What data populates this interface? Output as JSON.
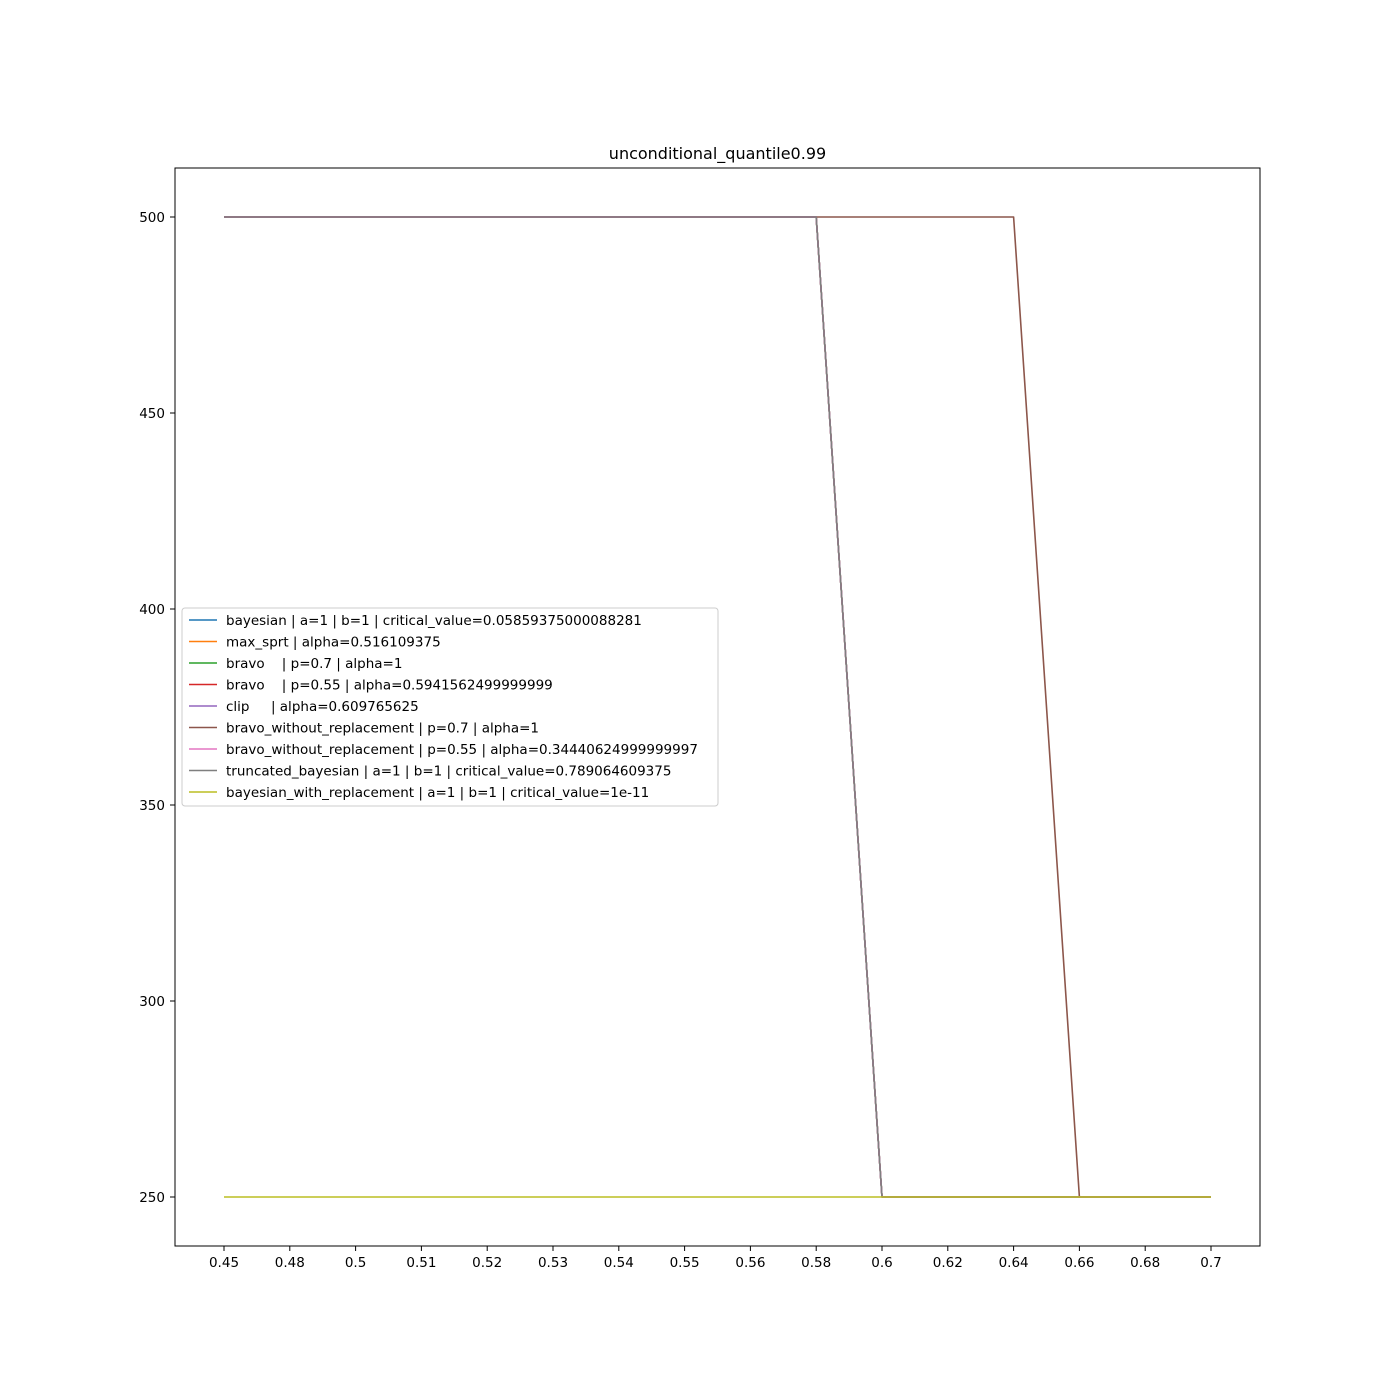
{
  "chart_data": {
    "type": "line",
    "title": "unconditional_quantile0.99",
    "xlabel": "",
    "ylabel": "",
    "x_ticks": [
      "0.45",
      "0.48",
      "0.5",
      "0.51",
      "0.52",
      "0.53",
      "0.54",
      "0.55",
      "0.56",
      "0.58",
      "0.6",
      "0.62",
      "0.64",
      "0.66",
      "0.68",
      "0.7"
    ],
    "y_ticks": [
      250,
      300,
      350,
      400,
      450,
      500
    ],
    "ylim": [
      237.5,
      512.5
    ],
    "grid": false,
    "legend_position": "center-left",
    "series": [
      {
        "name": "bayesian | a=1 | b=1 | critical_value=0.05859375000088281",
        "color": "#1f77b4",
        "values": [
          500,
          500,
          500,
          500,
          500,
          500,
          500,
          500,
          500,
          500,
          250,
          250,
          250,
          250,
          250,
          250
        ]
      },
      {
        "name": "max_sprt | alpha=0.516109375",
        "color": "#ff7f0e",
        "values": [
          500,
          500,
          500,
          500,
          500,
          500,
          500,
          500,
          500,
          500,
          250,
          250,
          250,
          250,
          250,
          250
        ]
      },
      {
        "name": "bravo    | p=0.7 | alpha=1",
        "color": "#2ca02c",
        "values": [
          500,
          500,
          500,
          500,
          500,
          500,
          500,
          500,
          500,
          500,
          250,
          250,
          250,
          250,
          250,
          250
        ]
      },
      {
        "name": "bravo    | p=0.55 | alpha=0.5941562499999999",
        "color": "#d62728",
        "values": [
          500,
          500,
          500,
          500,
          500,
          500,
          500,
          500,
          500,
          500,
          250,
          250,
          250,
          250,
          250,
          250
        ]
      },
      {
        "name": "clip     | alpha=0.609765625",
        "color": "#9467bd",
        "values": [
          500,
          500,
          500,
          500,
          500,
          500,
          500,
          500,
          500,
          500,
          250,
          250,
          250,
          250,
          250,
          250
        ]
      },
      {
        "name": "bravo_without_replacement | p=0.7 | alpha=1",
        "color": "#8c564b",
        "values": [
          500,
          500,
          500,
          500,
          500,
          500,
          500,
          500,
          500,
          500,
          500,
          500,
          500,
          250,
          250,
          250
        ]
      },
      {
        "name": "bravo_without_replacement | p=0.55 | alpha=0.34440624999999997",
        "color": "#e377c2",
        "values": [
          500,
          500,
          500,
          500,
          500,
          500,
          500,
          500,
          500,
          500,
          250,
          250,
          250,
          250,
          250,
          250
        ]
      },
      {
        "name": "truncated_bayesian | a=1 | b=1 | critical_value=0.789064609375",
        "color": "#7f7f7f",
        "values": [
          500,
          500,
          500,
          500,
          500,
          500,
          500,
          500,
          500,
          500,
          250,
          250,
          250,
          250,
          250,
          250
        ]
      },
      {
        "name": "bayesian_with_replacement | a=1 | b=1 | critical_value=1e-11",
        "color": "#bcbd22",
        "values": [
          250,
          250,
          250,
          250,
          250,
          250,
          250,
          250,
          250,
          250,
          250,
          250,
          250,
          250,
          250,
          250
        ]
      }
    ]
  }
}
